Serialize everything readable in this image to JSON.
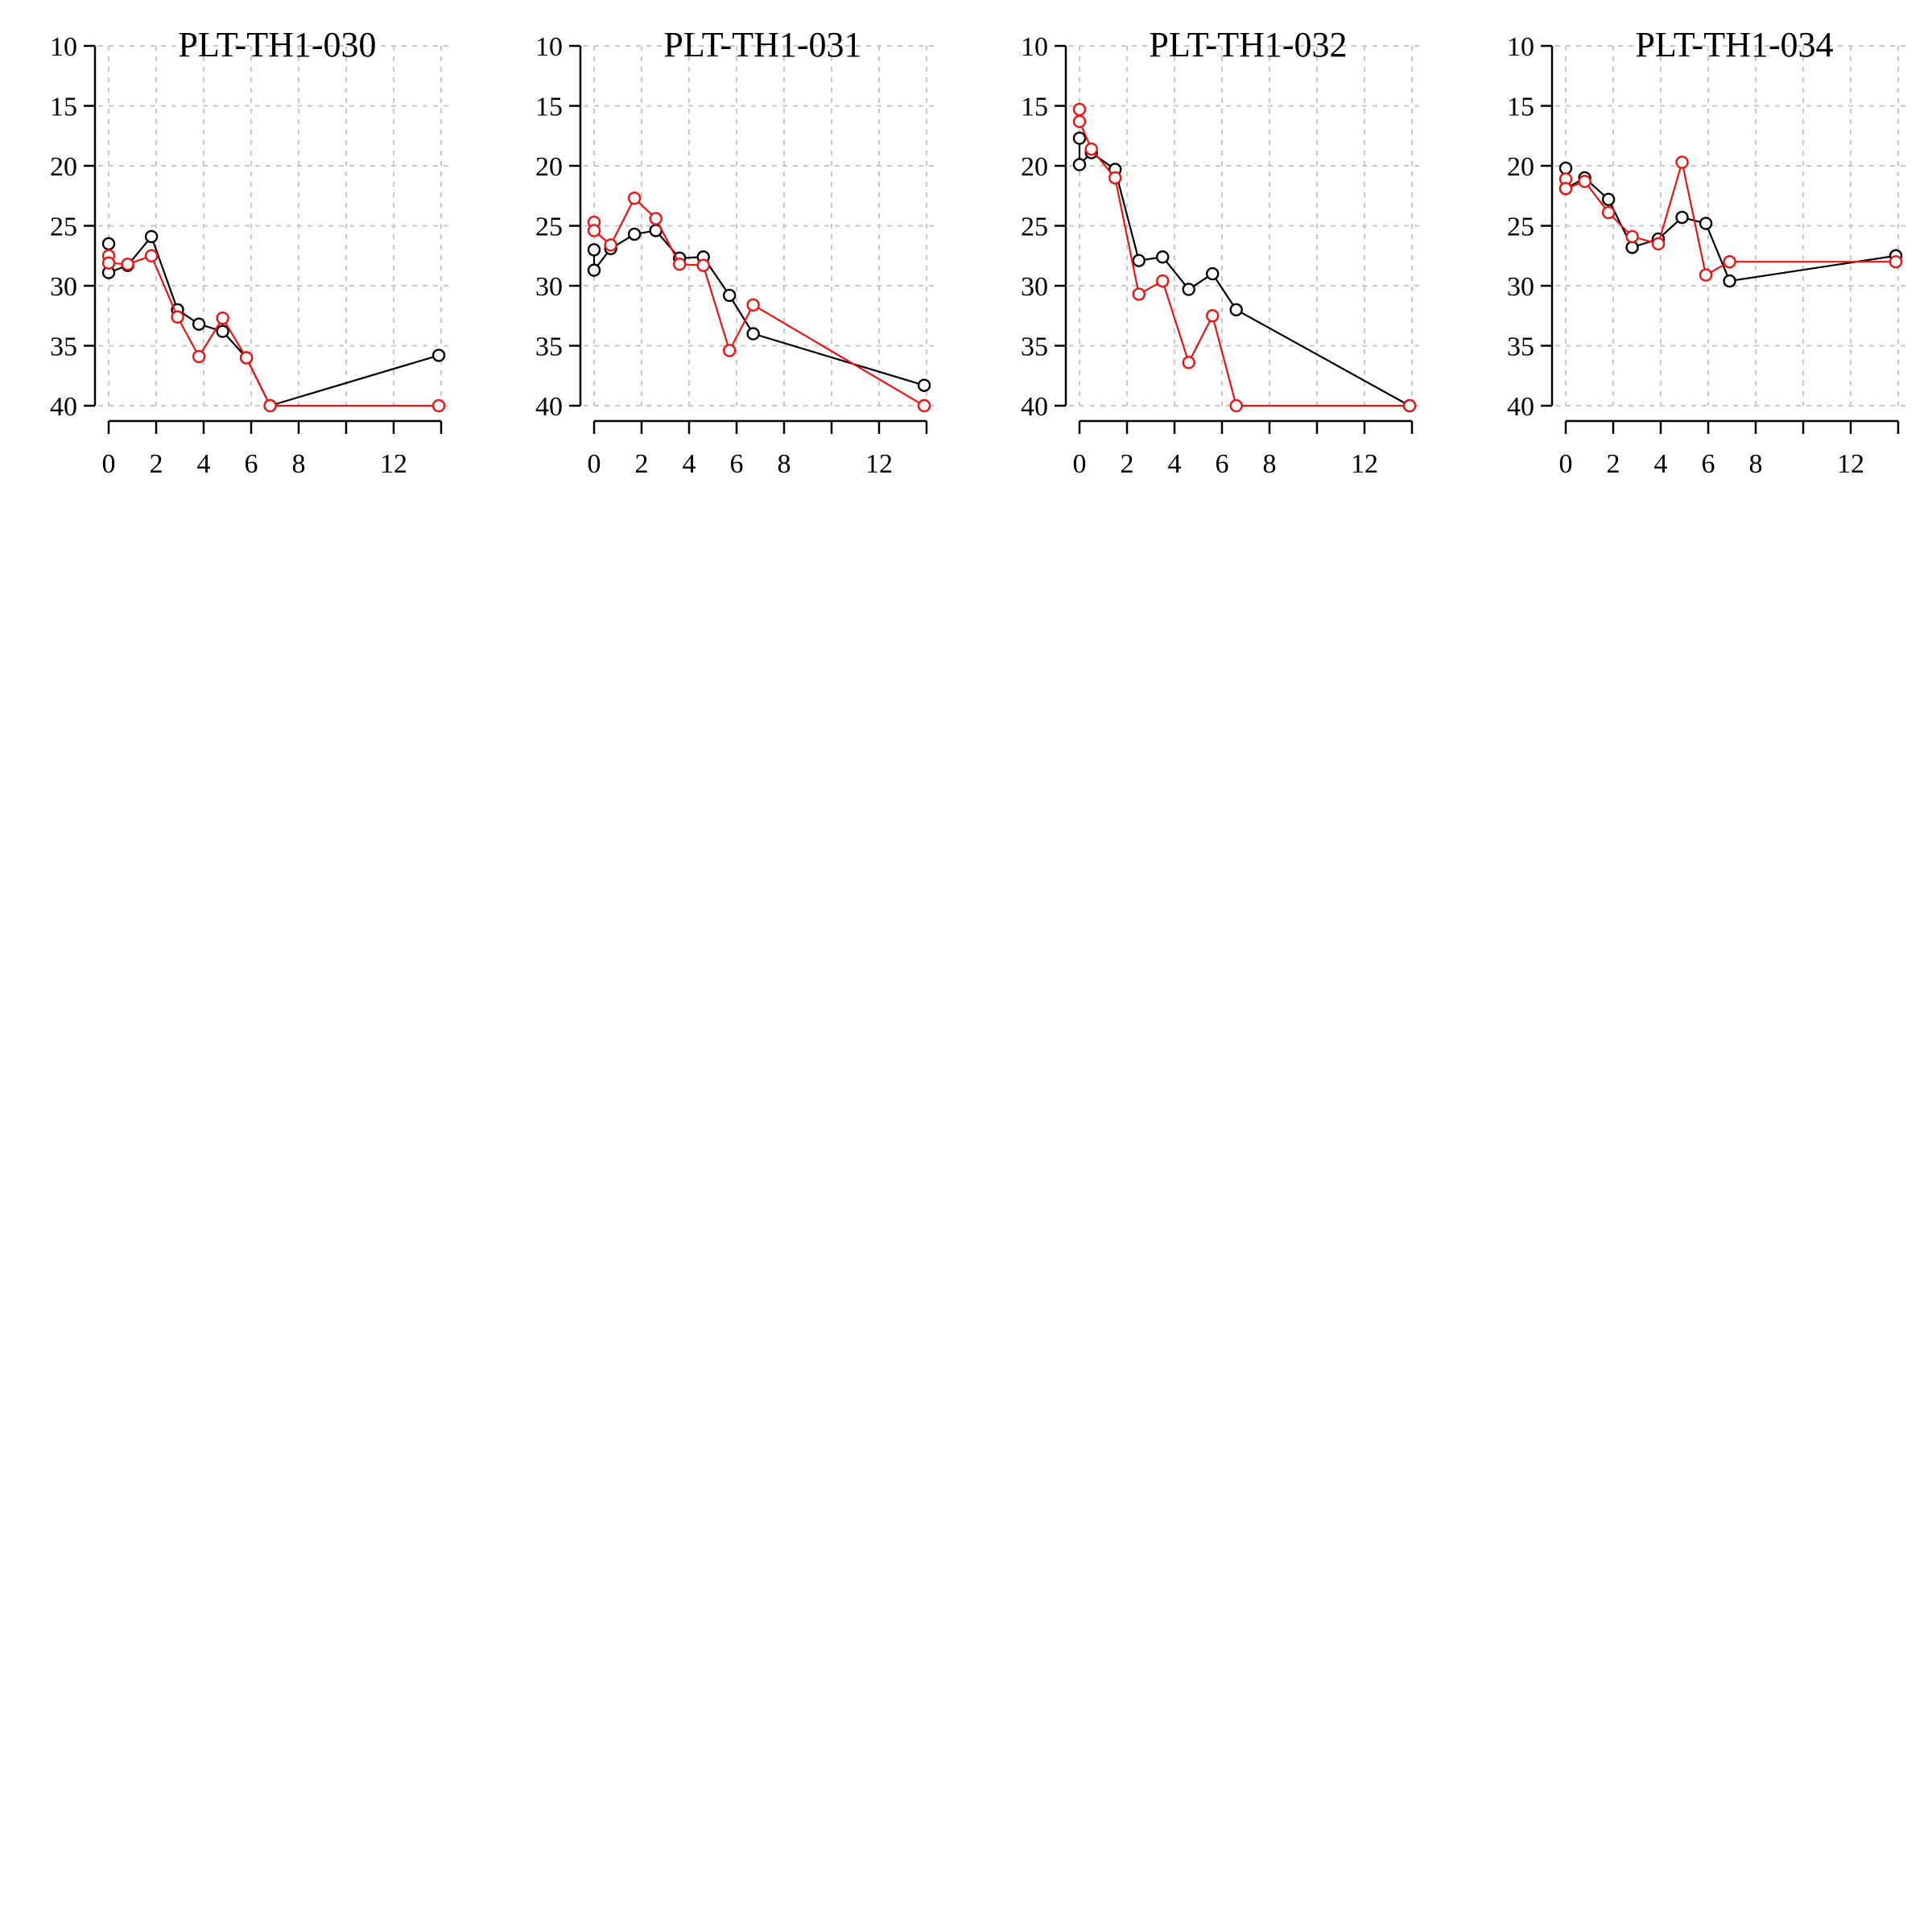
{
  "colors": {
    "series_a": "#000000",
    "series_b": "#ee1111",
    "grid": "#c8c8c8",
    "background": "#ffffff"
  },
  "chart_data": [
    {
      "type": "line",
      "title": "PLT-TH1-030",
      "xlabel": "",
      "ylabel": "",
      "xlim": [
        0,
        14
      ],
      "ylim": [
        40,
        10
      ],
      "y_reversed": true,
      "xticks": [
        0,
        2,
        4,
        6,
        8,
        12
      ],
      "xtick_minor": [
        10,
        14
      ],
      "yticks": [
        10,
        15,
        20,
        25,
        30,
        35,
        40
      ],
      "xgrid": [
        0,
        2,
        4,
        6,
        8,
        10,
        12,
        14
      ],
      "grid": true,
      "series": [
        {
          "color": "#000000",
          "x": [
            0,
            0,
            0.8,
            1.8,
            2.9,
            3.8,
            4.8,
            5.8,
            6.8,
            13.9
          ],
          "y": [
            26.5,
            28.9,
            28.3,
            25.9,
            32.0,
            33.2,
            33.8,
            36.0,
            40.0,
            35.8
          ]
        },
        {
          "color": "#ee1111",
          "x": [
            0,
            0,
            0.8,
            1.8,
            2.9,
            3.8,
            4.8,
            5.8,
            6.8,
            13.9
          ],
          "y": [
            27.5,
            28.1,
            28.2,
            27.5,
            32.6,
            35.9,
            32.7,
            36.0,
            40.0,
            40.0
          ]
        }
      ]
    },
    {
      "type": "line",
      "title": "PLT-TH1-031",
      "xlabel": "",
      "ylabel": "",
      "xlim": [
        0,
        14
      ],
      "ylim": [
        40,
        10
      ],
      "y_reversed": true,
      "xticks": [
        0,
        2,
        4,
        6,
        8,
        12
      ],
      "xtick_minor": [
        10,
        14
      ],
      "yticks": [
        10,
        15,
        20,
        25,
        30,
        35,
        40
      ],
      "xgrid": [
        0,
        2,
        4,
        6,
        8,
        10,
        12,
        14
      ],
      "grid": true,
      "series": [
        {
          "color": "#000000",
          "x": [
            0,
            0,
            0.7,
            1.7,
            2.6,
            3.6,
            4.6,
            5.7,
            6.7,
            13.9
          ],
          "y": [
            27.0,
            28.7,
            26.9,
            25.7,
            25.4,
            27.7,
            27.6,
            30.8,
            34.0,
            38.3
          ]
        },
        {
          "color": "#ee1111",
          "x": [
            0,
            0,
            0.7,
            1.7,
            2.6,
            3.6,
            4.6,
            5.7,
            6.7,
            13.9
          ],
          "y": [
            24.7,
            25.4,
            26.6,
            22.7,
            24.4,
            28.2,
            28.3,
            35.4,
            31.6,
            40.0
          ]
        }
      ]
    },
    {
      "type": "line",
      "title": "PLT-TH1-032",
      "xlabel": "",
      "ylabel": "",
      "xlim": [
        0,
        14
      ],
      "ylim": [
        40,
        10
      ],
      "y_reversed": true,
      "xticks": [
        0,
        2,
        4,
        6,
        8,
        12
      ],
      "xtick_minor": [
        10,
        14
      ],
      "yticks": [
        10,
        15,
        20,
        25,
        30,
        35,
        40
      ],
      "xgrid": [
        0,
        2,
        4,
        6,
        8,
        10,
        12,
        14
      ],
      "grid": true,
      "series": [
        {
          "color": "#000000",
          "x": [
            0,
            0,
            0.5,
            1.5,
            2.5,
            3.5,
            4.6,
            5.6,
            6.6,
            13.9
          ],
          "y": [
            17.7,
            19.9,
            18.9,
            20.3,
            27.9,
            27.6,
            30.3,
            29.0,
            32.0,
            40.0
          ]
        },
        {
          "color": "#ee1111",
          "x": [
            0,
            0,
            0.5,
            1.5,
            2.5,
            3.5,
            4.6,
            5.6,
            6.6,
            13.9
          ],
          "y": [
            15.3,
            16.3,
            18.6,
            21.0,
            30.7,
            29.6,
            36.4,
            32.5,
            40.0,
            40.0
          ]
        }
      ]
    },
    {
      "type": "line",
      "title": "PLT-TH1-034",
      "xlabel": "",
      "ylabel": "",
      "xlim": [
        0,
        14
      ],
      "ylim": [
        40,
        10
      ],
      "y_reversed": true,
      "xticks": [
        0,
        2,
        4,
        6,
        8,
        12
      ],
      "xtick_minor": [
        10,
        14
      ],
      "yticks": [
        10,
        15,
        20,
        25,
        30,
        35,
        40
      ],
      "xgrid": [
        0,
        2,
        4,
        6,
        8,
        10,
        12,
        14
      ],
      "grid": true,
      "series": [
        {
          "color": "#000000",
          "x": [
            0,
            0,
            0.8,
            1.8,
            2.8,
            3.9,
            4.9,
            5.9,
            6.9,
            13.9
          ],
          "y": [
            20.2,
            21.9,
            21.0,
            22.8,
            26.8,
            26.1,
            24.3,
            24.8,
            29.6,
            27.5
          ]
        },
        {
          "color": "#ee1111",
          "x": [
            0,
            0,
            0.8,
            1.8,
            2.8,
            3.9,
            4.9,
            5.9,
            6.9,
            13.9
          ],
          "y": [
            21.1,
            21.9,
            21.3,
            23.9,
            25.9,
            26.5,
            19.7,
            29.1,
            28.0,
            28.0
          ]
        }
      ]
    }
  ]
}
